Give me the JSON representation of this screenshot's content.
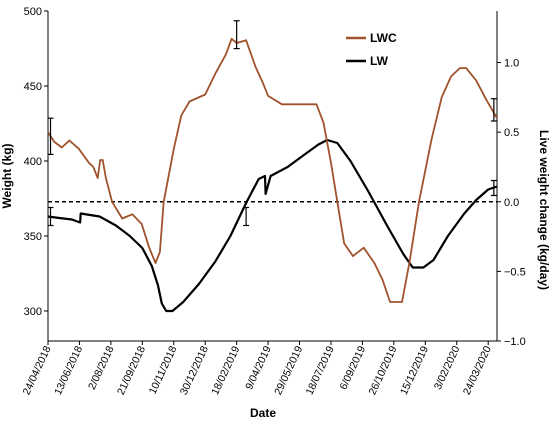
{
  "chart_data": {
    "type": "line",
    "xlabel": "Date",
    "ylabel_left": "Weight  (kg)",
    "ylabel_right": "Live weight change (kg/day)",
    "ylim_left": [
      280,
      500
    ],
    "ylim_right": [
      -1.0,
      1.37
    ],
    "yticks_left": [
      "300",
      "350",
      "400",
      "450",
      "500"
    ],
    "yticks_left_values": [
      300,
      350,
      400,
      450,
      500
    ],
    "yticks_right": [
      "−1.0",
      "−0.5",
      "0.0",
      "0.5",
      "1.0"
    ],
    "yticks_right_values": [
      -1.0,
      -0.5,
      0.0,
      0.5,
      1.0
    ],
    "x_range": [
      "2018-04-24",
      "2020-04-07"
    ],
    "x_tick_labels": [
      "24/04/2018",
      "13/06/2018",
      "2/08/2018",
      "21/09/2018",
      "10/11/2018",
      "30/12/2018",
      "18/02/2019",
      "9/04/2019",
      "29/05/2019",
      "18/07/2019",
      "6/09/2019",
      "26/10/2019",
      "15/12/2019",
      "3/02/2020",
      "24/03/2020"
    ],
    "x_tick_dates": [
      "2018-04-24",
      "2018-06-13",
      "2018-08-02",
      "2018-09-21",
      "2018-11-10",
      "2018-12-30",
      "2019-02-18",
      "2019-04-09",
      "2019-05-29",
      "2019-07-18",
      "2019-09-06",
      "2019-10-26",
      "2019-12-15",
      "2020-02-03",
      "2020-03-24"
    ],
    "reference_line": {
      "axis": "right",
      "value": 0.0,
      "style": "dashed"
    },
    "legend": {
      "placement": "top-right"
    },
    "grid": false,
    "series": [
      {
        "name": "LW",
        "axis": "left",
        "color": "#000000",
        "points": [
          [
            "2018-04-24",
            363
          ],
          [
            "2018-05-12",
            362
          ],
          [
            "2018-06-01",
            361
          ],
          [
            "2018-06-14",
            359
          ],
          [
            "2018-06-15",
            365
          ],
          [
            "2018-07-15",
            363
          ],
          [
            "2018-08-10",
            357
          ],
          [
            "2018-09-01",
            350
          ],
          [
            "2018-09-21",
            342
          ],
          [
            "2018-10-06",
            330
          ],
          [
            "2018-10-16",
            317
          ],
          [
            "2018-10-22",
            305
          ],
          [
            "2018-10-29",
            300
          ],
          [
            "2018-11-08",
            300
          ],
          [
            "2018-11-25",
            306
          ],
          [
            "2018-12-20",
            318
          ],
          [
            "2019-01-15",
            333
          ],
          [
            "2019-02-08",
            350
          ],
          [
            "2019-03-05",
            372
          ],
          [
            "2019-03-25",
            388
          ],
          [
            "2019-04-04",
            390
          ],
          [
            "2019-04-05",
            378
          ],
          [
            "2019-04-13",
            390
          ],
          [
            "2019-05-10",
            396
          ],
          [
            "2019-06-05",
            404
          ],
          [
            "2019-06-28",
            411
          ],
          [
            "2019-07-12",
            414
          ],
          [
            "2019-07-28",
            412
          ],
          [
            "2019-08-18",
            400
          ],
          [
            "2019-09-15",
            380
          ],
          [
            "2019-10-15",
            357
          ],
          [
            "2019-11-10",
            338
          ],
          [
            "2019-11-25",
            329
          ],
          [
            "2019-12-12",
            329
          ],
          [
            "2019-12-28",
            334
          ],
          [
            "2020-01-20",
            350
          ],
          [
            "2020-02-15",
            365
          ],
          [
            "2020-03-05",
            374
          ],
          [
            "2020-03-24",
            381
          ],
          [
            "2020-04-07",
            383
          ]
        ],
        "error_bars": [
          {
            "x": "2018-04-28",
            "y": 363,
            "err": 6
          },
          {
            "x": "2019-03-05",
            "y": 363,
            "err": 6
          },
          {
            "x": "2020-04-02",
            "y": 382,
            "err": 5
          }
        ]
      },
      {
        "name": "LWC",
        "axis": "right",
        "color": "#a0522d",
        "points": [
          [
            "2018-04-24",
            0.5
          ],
          [
            "2018-05-04",
            0.43
          ],
          [
            "2018-05-16",
            0.39
          ],
          [
            "2018-05-28",
            0.44
          ],
          [
            "2018-06-12",
            0.38
          ],
          [
            "2018-06-28",
            0.28
          ],
          [
            "2018-07-05",
            0.25
          ],
          [
            "2018-07-12",
            0.17
          ],
          [
            "2018-07-16",
            0.3
          ],
          [
            "2018-07-20",
            0.3
          ],
          [
            "2018-07-25",
            0.17
          ],
          [
            "2018-08-04",
            0.0
          ],
          [
            "2018-08-20",
            -0.12
          ],
          [
            "2018-09-05",
            -0.09
          ],
          [
            "2018-09-20",
            -0.16
          ],
          [
            "2018-10-02",
            -0.33
          ],
          [
            "2018-10-12",
            -0.44
          ],
          [
            "2018-10-19",
            -0.36
          ],
          [
            "2018-10-25",
            0.0
          ],
          [
            "2018-11-10",
            0.38
          ],
          [
            "2018-11-22",
            0.62
          ],
          [
            "2018-12-05",
            0.72
          ],
          [
            "2018-12-30",
            0.77
          ],
          [
            "2019-01-15",
            0.92
          ],
          [
            "2019-02-01",
            1.06
          ],
          [
            "2019-02-10",
            1.17
          ],
          [
            "2019-02-18",
            1.14
          ],
          [
            "2019-03-05",
            1.16
          ],
          [
            "2019-03-20",
            0.97
          ],
          [
            "2019-04-01",
            0.85
          ],
          [
            "2019-04-09",
            0.76
          ],
          [
            "2019-05-01",
            0.7
          ],
          [
            "2019-06-25",
            0.7
          ],
          [
            "2019-07-06",
            0.57
          ],
          [
            "2019-07-18",
            0.28
          ],
          [
            "2019-07-28",
            0.0
          ],
          [
            "2019-08-08",
            -0.3
          ],
          [
            "2019-08-22",
            -0.39
          ],
          [
            "2019-09-08",
            -0.33
          ],
          [
            "2019-09-25",
            -0.44
          ],
          [
            "2019-10-08",
            -0.56
          ],
          [
            "2019-10-20",
            -0.72
          ],
          [
            "2019-11-08",
            -0.72
          ],
          [
            "2019-11-20",
            -0.43
          ],
          [
            "2019-12-05",
            0.0
          ],
          [
            "2019-12-25",
            0.45
          ],
          [
            "2020-01-10",
            0.75
          ],
          [
            "2020-01-25",
            0.9
          ],
          [
            "2020-02-08",
            0.96
          ],
          [
            "2020-02-18",
            0.96
          ],
          [
            "2020-03-05",
            0.87
          ],
          [
            "2020-03-20",
            0.74
          ],
          [
            "2020-04-07",
            0.6
          ]
        ],
        "error_bars": [
          {
            "x": "2018-04-28",
            "y": 0.47,
            "err": 0.13
          },
          {
            "x": "2019-02-18",
            "y": 1.2,
            "err": 0.1
          },
          {
            "x": "2020-04-02",
            "y": 0.66,
            "err": 0.08
          }
        ]
      }
    ]
  }
}
